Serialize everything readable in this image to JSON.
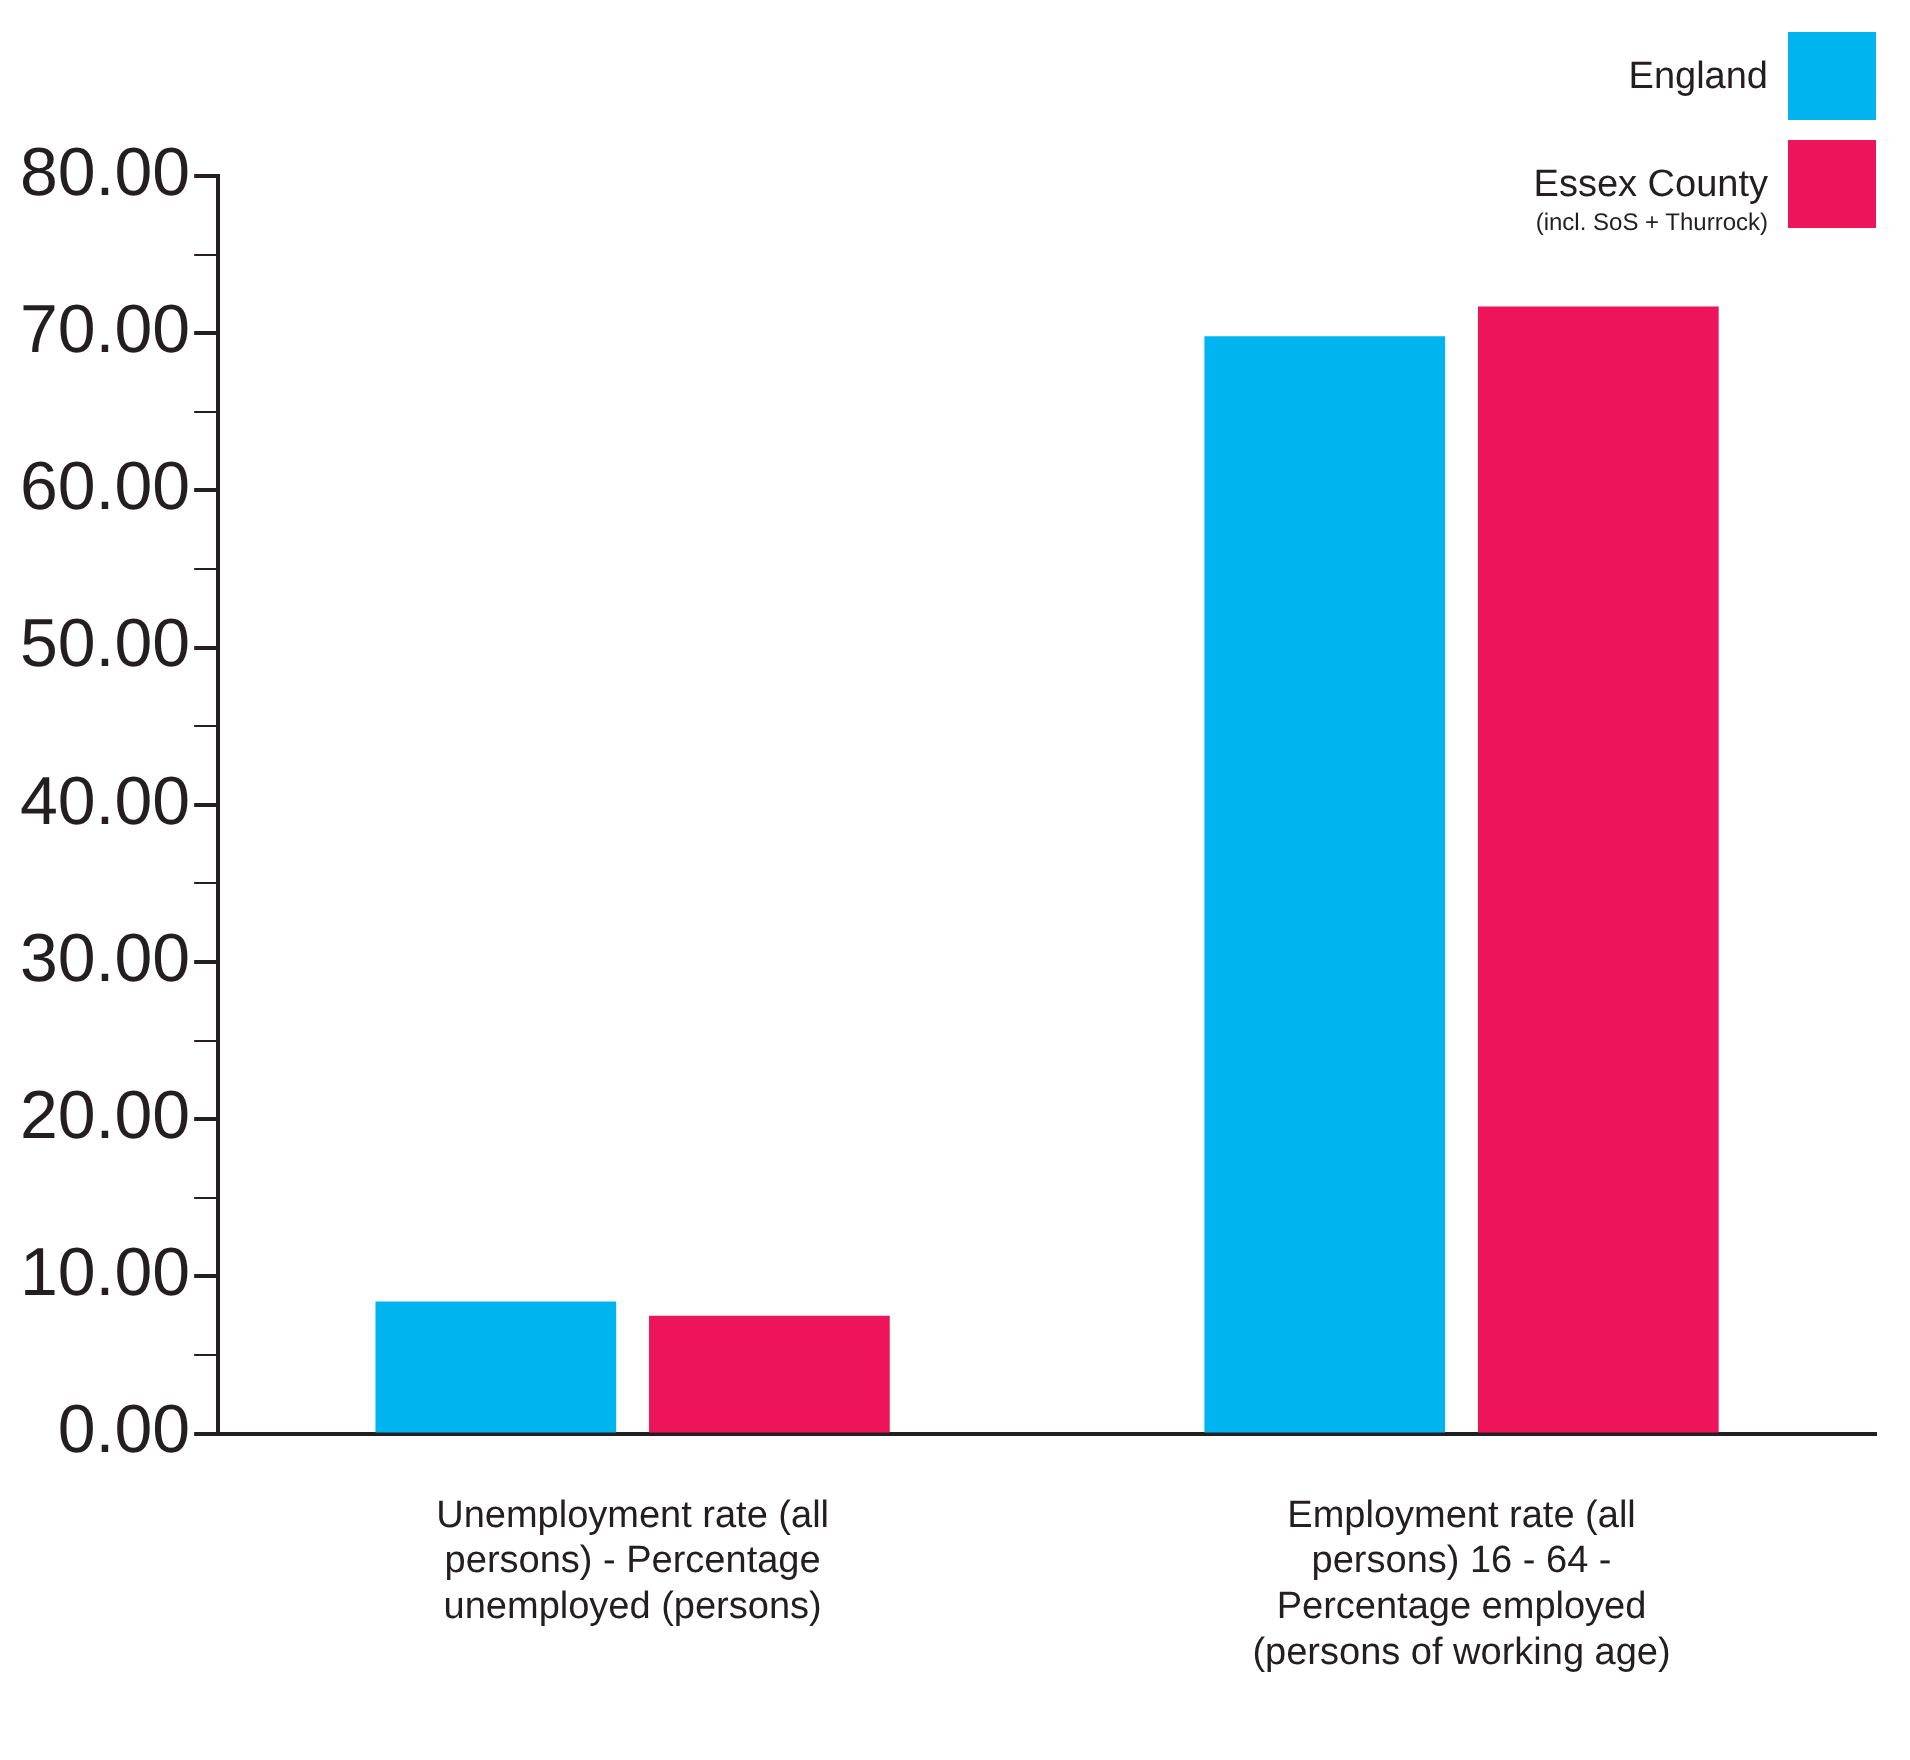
{
  "chart_data": {
    "type": "bar",
    "categories": [
      "Unemployment rate (all persons) - Percentage unemployed (persons)",
      "Employment rate (all persons) 16 - 64 - Percentage employed (persons of working age)"
    ],
    "series": [
      {
        "name": "England",
        "color": "#00b5ef",
        "values": [
          8.4,
          69.8
        ]
      },
      {
        "name": "Essex County",
        "color": "#ee145b",
        "values": [
          7.5,
          71.7
        ]
      }
    ],
    "annotations": [
      "(incl. SoS + Thurrock)"
    ],
    "ylim": [
      0,
      80
    ],
    "yticks": [
      {
        "value": 0,
        "label": "0.00"
      },
      {
        "value": 5,
        "label": null
      },
      {
        "value": 10,
        "label": "10.00"
      },
      {
        "value": 15,
        "label": null
      },
      {
        "value": 20,
        "label": "20.00"
      },
      {
        "value": 25,
        "label": null
      },
      {
        "value": 30,
        "label": "30.00"
      },
      {
        "value": 35,
        "label": null
      },
      {
        "value": 40,
        "label": "40.00"
      },
      {
        "value": 45,
        "label": null
      },
      {
        "value": 50,
        "label": "50.00"
      },
      {
        "value": 55,
        "label": null
      },
      {
        "value": 60,
        "label": "60.00"
      },
      {
        "value": 65,
        "label": null
      },
      {
        "value": 70,
        "label": "70.00"
      },
      {
        "value": 75,
        "label": null
      },
      {
        "value": 80,
        "label": "80.00"
      }
    ],
    "grid": false,
    "legend": "top right"
  }
}
